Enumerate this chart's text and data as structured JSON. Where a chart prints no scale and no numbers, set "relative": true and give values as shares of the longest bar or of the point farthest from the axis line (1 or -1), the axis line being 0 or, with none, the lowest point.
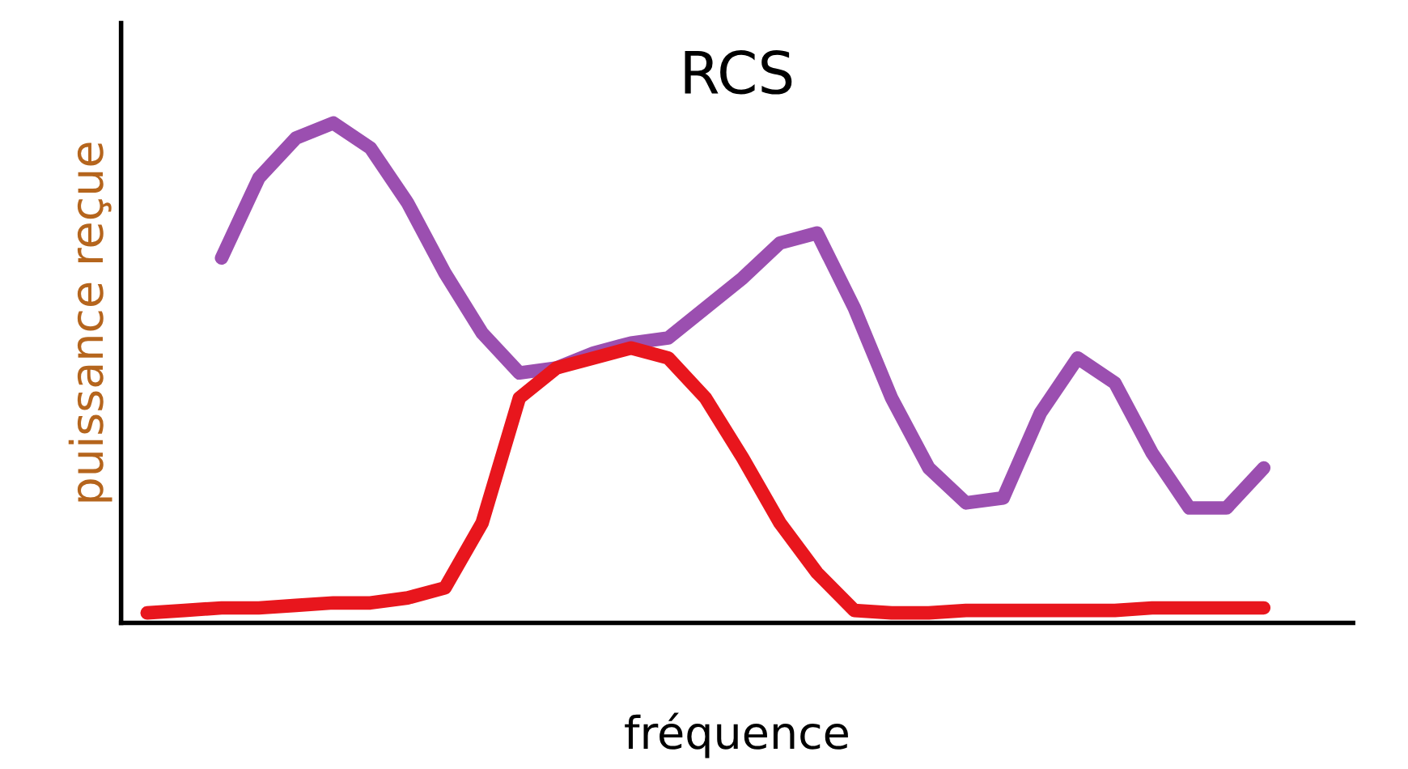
{
  "chart_data": {
    "type": "line",
    "title": "RCS",
    "xlabel": "fréquence",
    "ylabel": "puissance reçue",
    "relative": true,
    "marker": "none",
    "line_style": "solid",
    "categories": [
      null,
      null,
      null,
      null,
      null,
      null,
      null,
      null,
      null,
      null,
      null,
      null,
      null,
      null,
      null,
      null,
      null,
      null,
      null,
      null,
      null,
      null,
      null,
      null,
      null,
      null,
      null,
      null,
      null,
      null,
      null
    ],
    "series": [
      {
        "color": "#9b4fb0",
        "values": [
          null,
          null,
          0.73,
          0.89,
          0.97,
          1.0,
          0.95,
          0.84,
          0.7,
          0.58,
          0.5,
          0.51,
          0.54,
          0.56,
          0.57,
          0.63,
          0.69,
          0.76,
          0.78,
          0.63,
          0.45,
          0.31,
          0.24,
          0.25,
          0.42,
          0.53,
          0.48,
          0.34,
          0.23,
          0.23,
          0.31
        ]
      },
      {
        "color": "#e8161d",
        "values": [
          0.02,
          0.025,
          0.03,
          0.03,
          0.035,
          0.04,
          0.04,
          0.05,
          0.07,
          0.2,
          0.45,
          0.51,
          0.53,
          0.55,
          0.53,
          0.45,
          0.33,
          0.2,
          0.1,
          0.025,
          0.02,
          0.02,
          0.025,
          0.025,
          0.025,
          0.025,
          0.025,
          0.03,
          0.03,
          0.03,
          0.03
        ]
      }
    ]
  }
}
